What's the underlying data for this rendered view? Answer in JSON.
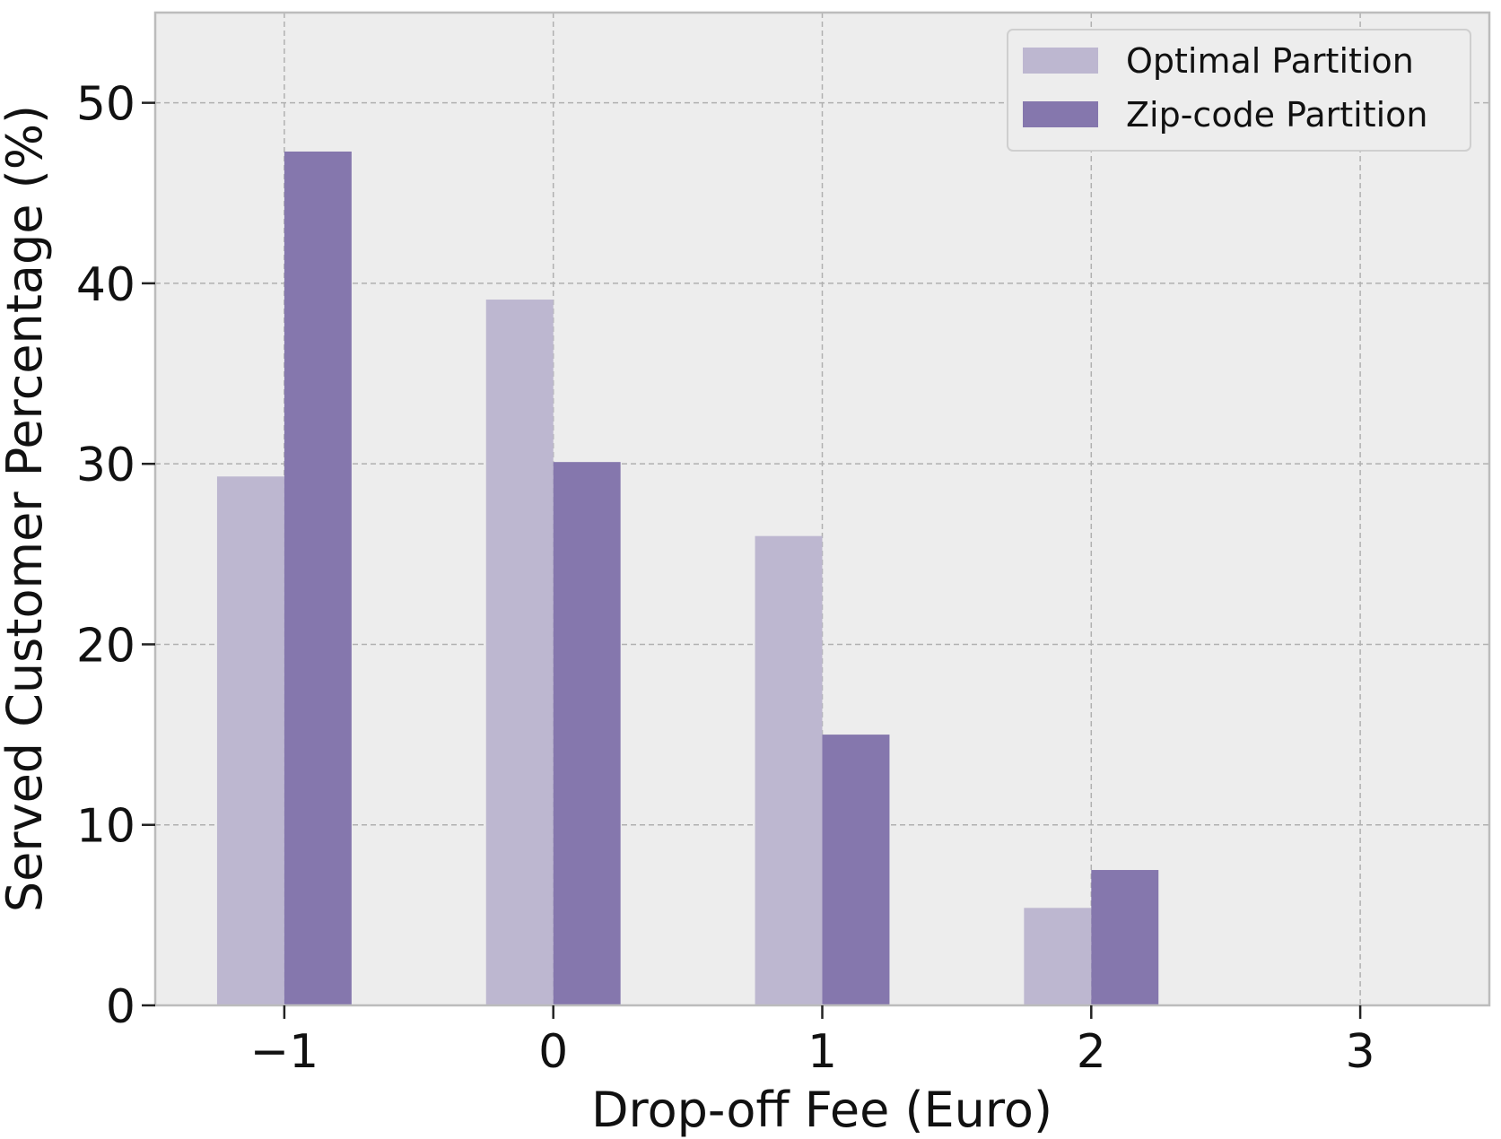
{
  "chart_data": {
    "type": "bar",
    "title": "",
    "xlabel": "Drop-off Fee (Euro)",
    "ylabel": "Served Customer Percentage (%)",
    "categories": [
      "−1",
      "0",
      "1",
      "2",
      "3"
    ],
    "x": [
      -1,
      0,
      1,
      2,
      3
    ],
    "xlim": [
      -1.48,
      3.48
    ],
    "ylim": [
      0,
      55
    ],
    "yticks": [
      0,
      10,
      20,
      30,
      40,
      50
    ],
    "grid": true,
    "legend_position": "top-right",
    "series": [
      {
        "name": "Optimal Partition",
        "values": [
          29.3,
          39.1,
          26.0,
          5.4,
          0
        ],
        "color": "#bdb7d0"
      },
      {
        "name": "Zip-code Partition",
        "values": [
          47.3,
          30.1,
          15.0,
          7.5,
          0
        ],
        "color": "#8577ad"
      }
    ],
    "background_color": "#ededed",
    "grid_color": "#b0b0b0"
  }
}
